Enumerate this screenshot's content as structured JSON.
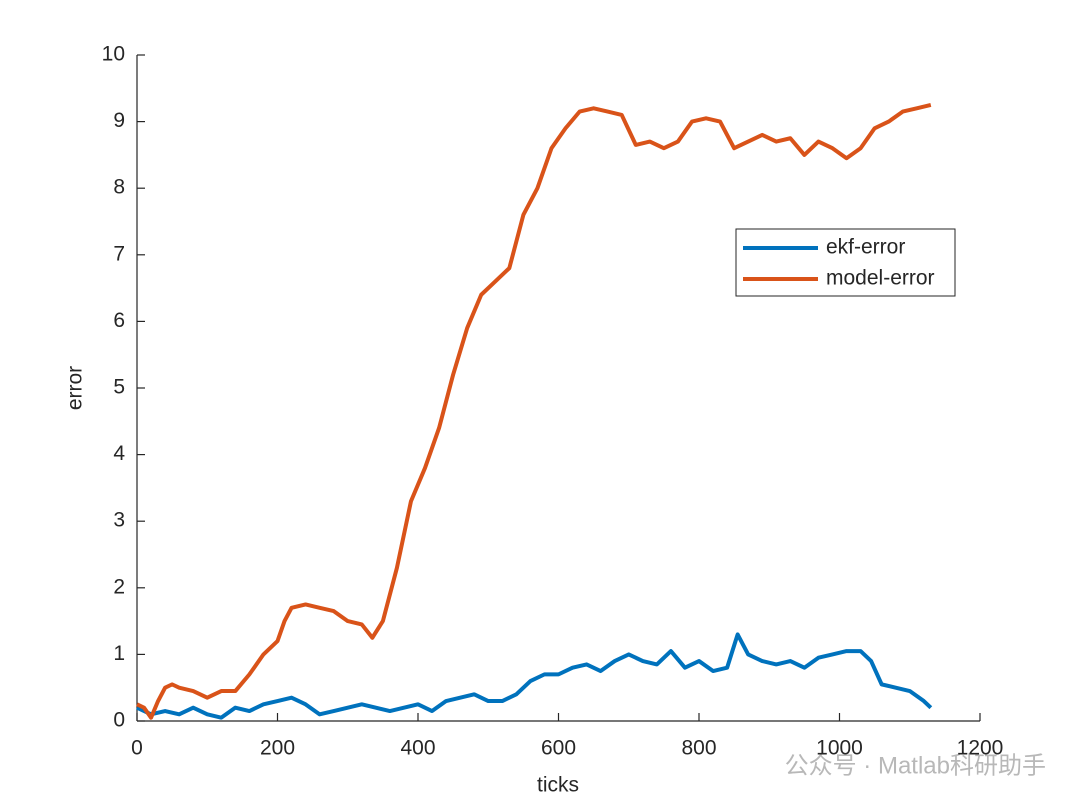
{
  "chart_data": {
    "type": "line",
    "xlabel": "ticks",
    "ylabel": "error",
    "xlim": [
      0,
      1200
    ],
    "xticks": [
      0,
      200,
      400,
      600,
      800,
      1000,
      1200
    ],
    "ylim": [
      0,
      10
    ],
    "yticks": [
      0,
      1,
      2,
      3,
      4,
      5,
      6,
      7,
      8,
      9,
      10
    ],
    "legend": "northeast",
    "annotation": "公众号 · Matlab科研助手",
    "series": [
      {
        "name": "ekf-error",
        "color": "#0072BD",
        "x": [
          0,
          20,
          40,
          60,
          80,
          100,
          120,
          140,
          160,
          180,
          200,
          220,
          240,
          260,
          280,
          300,
          320,
          340,
          360,
          380,
          400,
          420,
          440,
          460,
          480,
          500,
          520,
          540,
          560,
          580,
          600,
          620,
          640,
          660,
          680,
          700,
          720,
          740,
          760,
          780,
          800,
          820,
          840,
          855,
          870,
          890,
          910,
          930,
          950,
          970,
          990,
          1010,
          1030,
          1045,
          1060,
          1080,
          1100,
          1120,
          1130
        ],
        "values": [
          0.2,
          0.1,
          0.15,
          0.1,
          0.2,
          0.1,
          0.05,
          0.2,
          0.15,
          0.25,
          0.3,
          0.35,
          0.25,
          0.1,
          0.15,
          0.2,
          0.25,
          0.2,
          0.15,
          0.2,
          0.25,
          0.15,
          0.3,
          0.35,
          0.4,
          0.3,
          0.3,
          0.4,
          0.6,
          0.7,
          0.7,
          0.8,
          0.85,
          0.75,
          0.9,
          1.0,
          0.9,
          0.85,
          1.05,
          0.8,
          0.9,
          0.75,
          0.8,
          1.3,
          1.0,
          0.9,
          0.85,
          0.9,
          0.8,
          0.95,
          1.0,
          1.05,
          1.05,
          0.9,
          0.55,
          0.5,
          0.45,
          0.3,
          0.2
        ]
      },
      {
        "name": "model-error",
        "color": "#D95319",
        "x": [
          0,
          10,
          20,
          30,
          40,
          50,
          60,
          80,
          100,
          120,
          140,
          160,
          180,
          200,
          210,
          220,
          240,
          260,
          280,
          300,
          320,
          335,
          350,
          370,
          390,
          410,
          430,
          450,
          470,
          490,
          510,
          530,
          550,
          570,
          590,
          610,
          630,
          650,
          670,
          690,
          710,
          730,
          750,
          770,
          790,
          810,
          830,
          850,
          870,
          890,
          910,
          930,
          950,
          970,
          990,
          1010,
          1030,
          1050,
          1070,
          1090,
          1110,
          1130
        ],
        "values": [
          0.25,
          0.2,
          0.05,
          0.3,
          0.5,
          0.55,
          0.5,
          0.45,
          0.35,
          0.45,
          0.45,
          0.7,
          1.0,
          1.2,
          1.5,
          1.7,
          1.75,
          1.7,
          1.65,
          1.5,
          1.45,
          1.25,
          1.5,
          2.3,
          3.3,
          3.8,
          4.4,
          5.2,
          5.9,
          6.4,
          6.6,
          6.8,
          7.6,
          8.0,
          8.6,
          8.9,
          9.15,
          9.2,
          9.15,
          9.1,
          8.65,
          8.7,
          8.6,
          8.7,
          9.0,
          9.05,
          9.0,
          8.6,
          8.7,
          8.8,
          8.7,
          8.75,
          8.5,
          8.7,
          8.6,
          8.45,
          8.6,
          8.9,
          9.0,
          9.15,
          9.2,
          9.25
        ]
      }
    ]
  }
}
